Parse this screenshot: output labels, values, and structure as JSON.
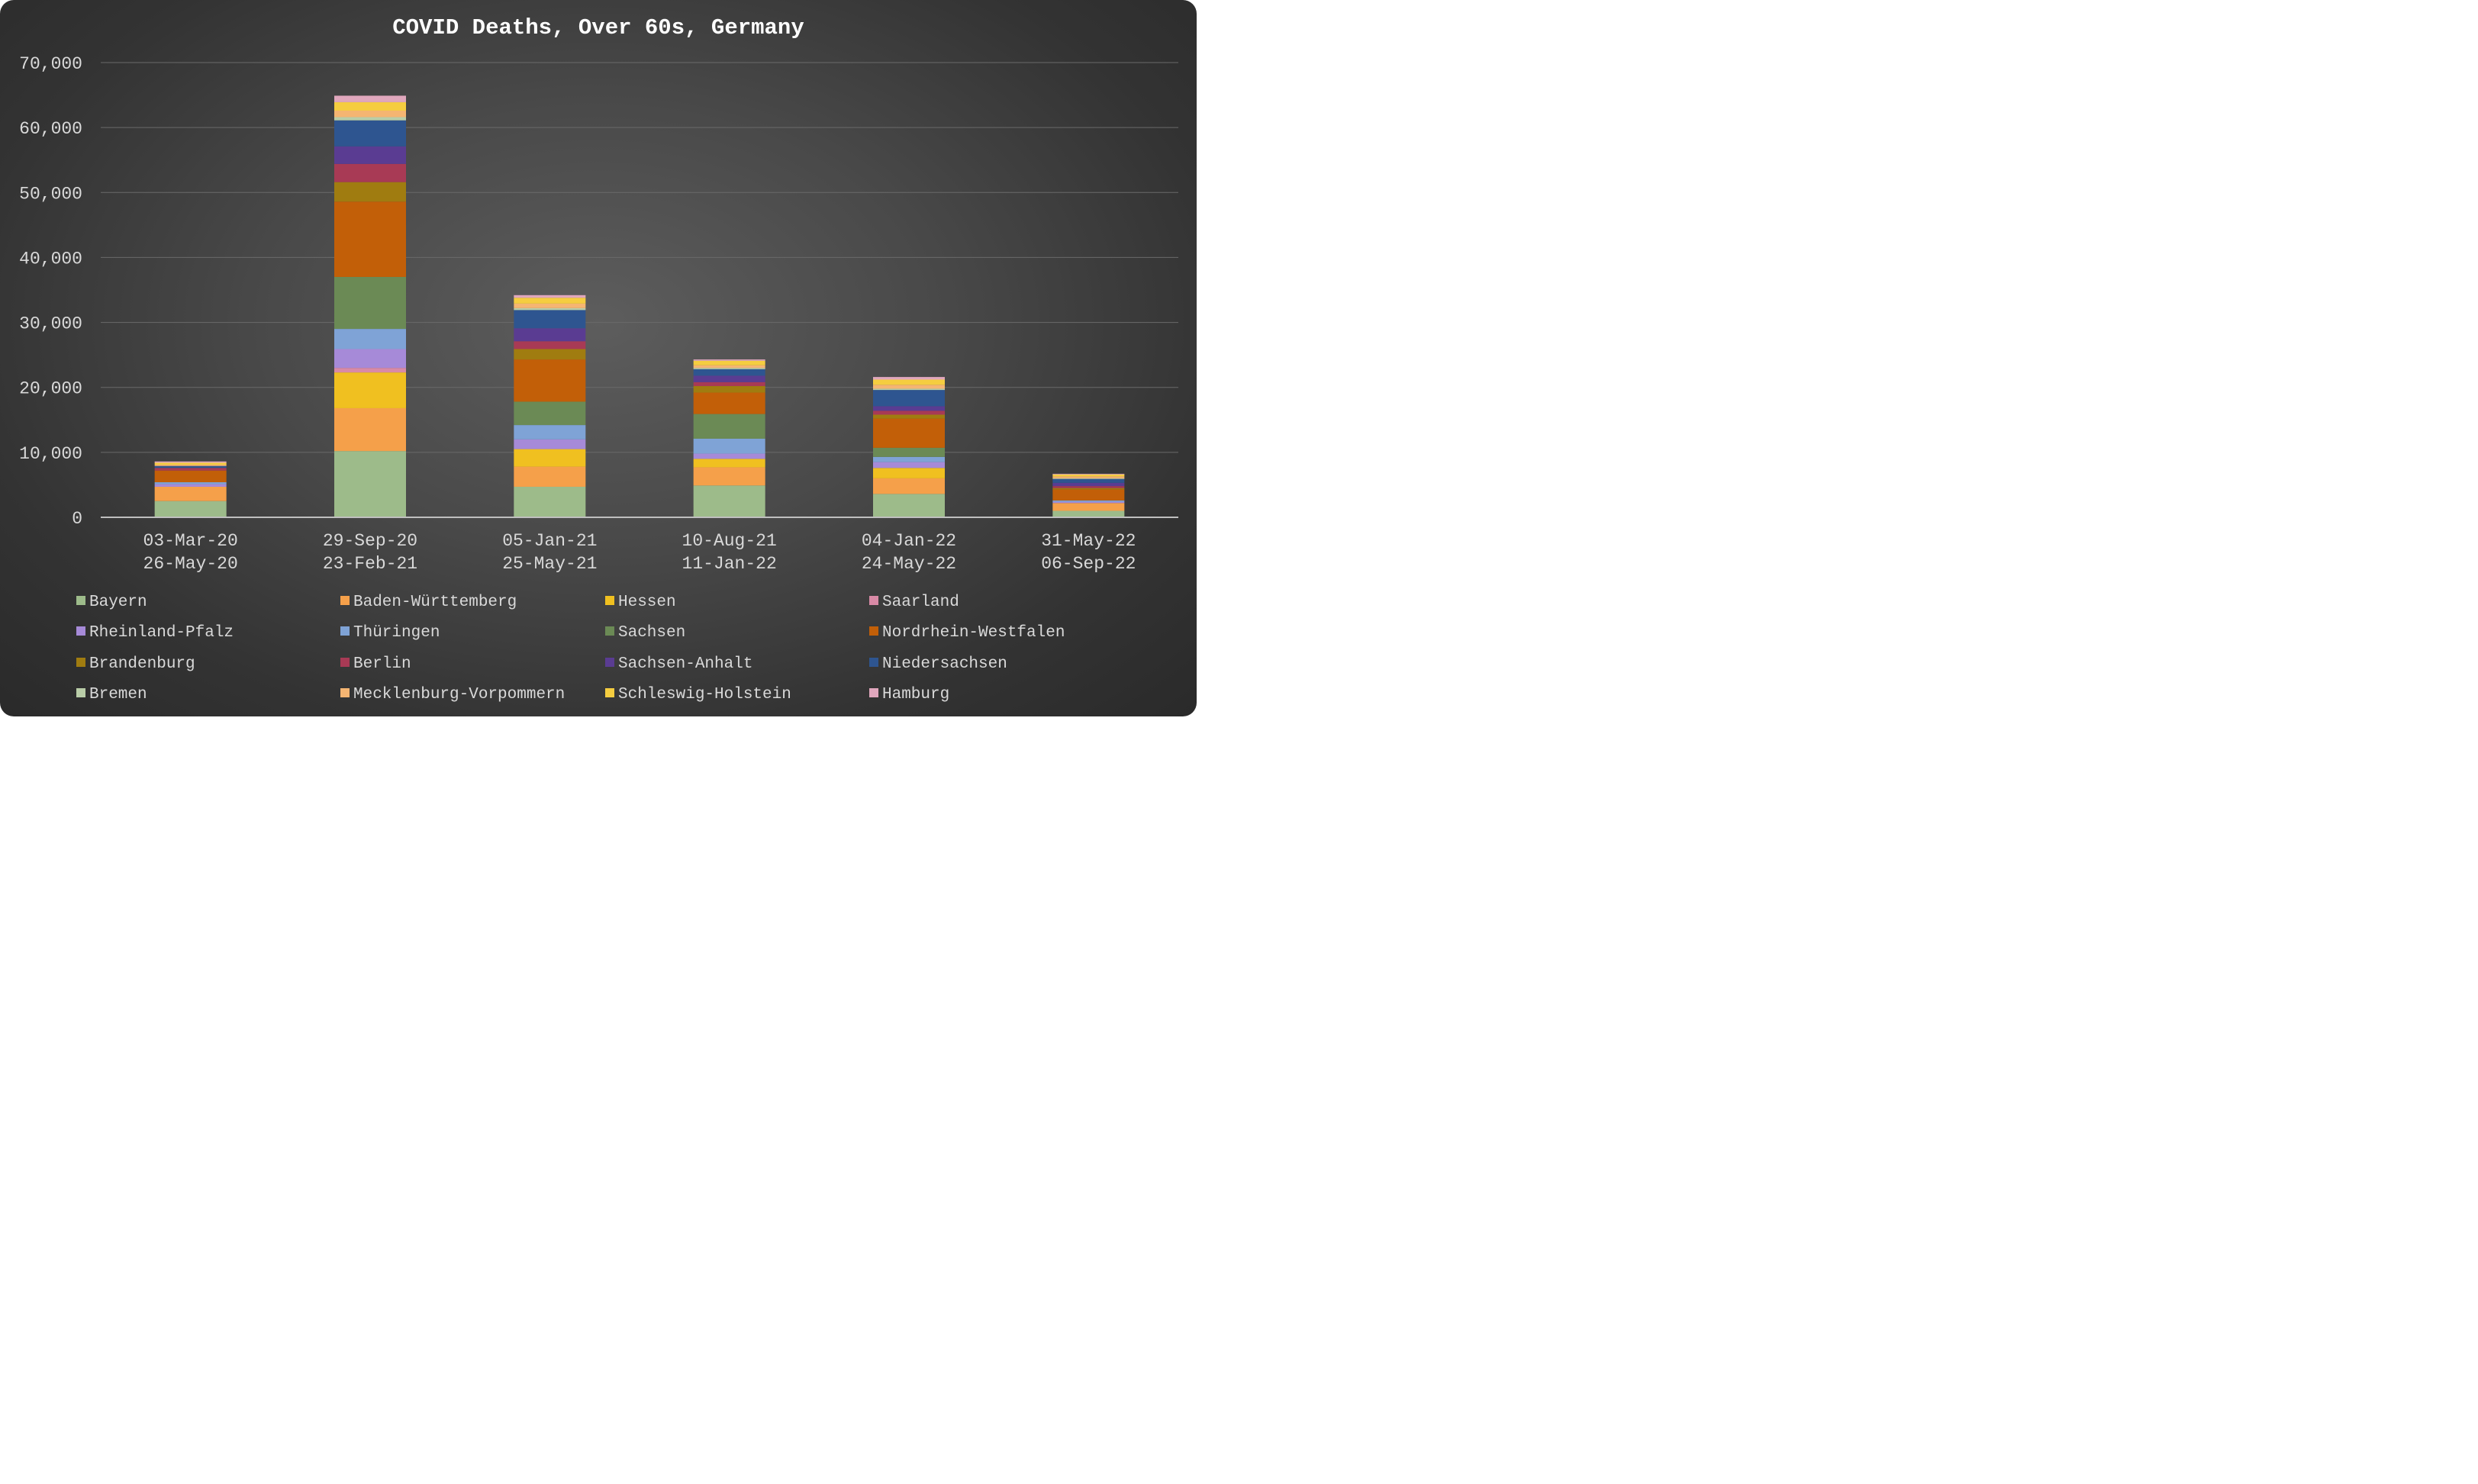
{
  "chart_data": {
    "type": "bar",
    "stacked": true,
    "title": "COVID Deaths, Over 60s, Germany",
    "xlabel": "",
    "ylabel": "",
    "ylim": [
      0,
      70000
    ],
    "yticks": [
      0,
      10000,
      20000,
      30000,
      40000,
      50000,
      60000,
      70000
    ],
    "ytick_labels": [
      "0",
      "10,000",
      "20,000",
      "30,000",
      "40,000",
      "50,000",
      "60,000",
      "70,000"
    ],
    "grid": true,
    "legend_position": "bottom",
    "categories": [
      [
        "03-Mar-20",
        "26-May-20"
      ],
      [
        "29-Sep-20",
        "23-Feb-21"
      ],
      [
        "05-Jan-21",
        "25-May-21"
      ],
      [
        "10-Aug-21",
        "11-Jan-22"
      ],
      [
        "04-Jan-22",
        "24-May-22"
      ],
      [
        "31-May-22",
        "06-Sep-22"
      ]
    ],
    "series": [
      {
        "name": "Bayern",
        "color": "#9dbb8a",
        "values": [
          2500,
          10200,
          4700,
          4900,
          3600,
          1000
        ]
      },
      {
        "name": "Baden-Württemberg",
        "color": "#f5a04a",
        "values": [
          2200,
          6600,
          3100,
          2800,
          2400,
          1200
        ]
      },
      {
        "name": "Hessen",
        "color": "#f0c020",
        "values": [
          0,
          5500,
          2700,
          1300,
          1600,
          0
        ]
      },
      {
        "name": "Saarland",
        "color": "#d98aa6",
        "values": [
          0,
          700,
          0,
          0,
          0,
          0
        ]
      },
      {
        "name": "Rheinland-Pfalz",
        "color": "#a68ad8",
        "values": [
          400,
          2900,
          1500,
          800,
          900,
          200
        ]
      },
      {
        "name": "Thüringen",
        "color": "#7fa3d6",
        "values": [
          300,
          3100,
          2200,
          2300,
          800,
          200
        ]
      },
      {
        "name": "Sachsen",
        "color": "#6b8a55",
        "values": [
          0,
          8000,
          3600,
          3800,
          1400,
          0
        ]
      },
      {
        "name": "Nordrhein-Westfalen",
        "color": "#c25f08",
        "values": [
          1800,
          11600,
          6500,
          3300,
          4500,
          1700
        ]
      },
      {
        "name": "Brandenburg",
        "color": "#a07c10",
        "values": [
          0,
          3000,
          1600,
          1000,
          600,
          200
        ]
      },
      {
        "name": "Berlin",
        "color": "#a83a55",
        "values": [
          400,
          2800,
          1200,
          600,
          600,
          300
        ]
      },
      {
        "name": "Sachsen-Anhalt",
        "color": "#5a3c92",
        "values": [
          0,
          2700,
          2000,
          1000,
          700,
          500
        ]
      },
      {
        "name": "Niedersachsen",
        "color": "#2e5590",
        "values": [
          300,
          4000,
          2800,
          1000,
          2500,
          600
        ]
      },
      {
        "name": "Bremen",
        "color": "#b9cda8",
        "values": [
          0,
          500,
          300,
          200,
          200,
          100
        ]
      },
      {
        "name": "Mecklenburg-Vorpommern",
        "color": "#f5b572",
        "values": [
          200,
          1000,
          700,
          400,
          600,
          300
        ]
      },
      {
        "name": "Schleswig-Holstein",
        "color": "#f5cd40",
        "values": [
          300,
          1300,
          900,
          700,
          800,
          300
        ]
      },
      {
        "name": "Hamburg",
        "color": "#e0a7bd",
        "values": [
          200,
          1000,
          400,
          200,
          400,
          100
        ]
      }
    ]
  }
}
